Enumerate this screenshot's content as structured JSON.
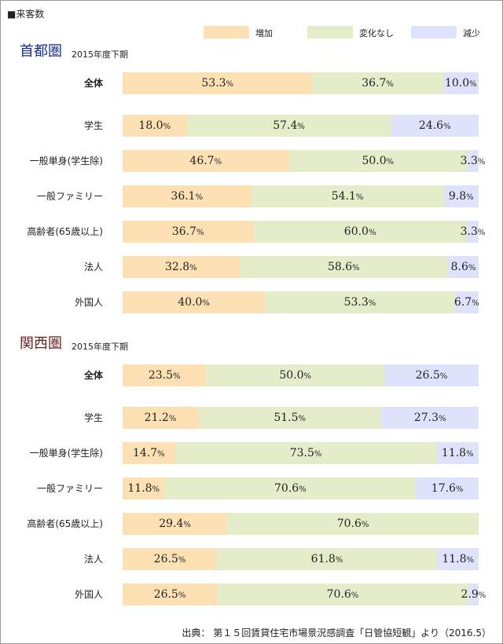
{
  "header": {
    "title": "■来客数"
  },
  "colors": {
    "increase": "#fde1b4",
    "unchanged": "#e5ecca",
    "decrease": "#dfe2fb",
    "region_capital": "#1c2e8c",
    "region_kansai": "#6b1f1f"
  },
  "source_text": "出典： 第１５回賃貸住宅市場景況感調査「日管協短観」より（2016.5）",
  "chart_data": {
    "type": "bar",
    "stacked": true,
    "orientation": "horizontal",
    "unit": "%",
    "xlim": [
      0,
      100
    ],
    "legend": {
      "placement": "top-right",
      "entries": [
        "増加",
        "変化なし",
        "減少"
      ]
    },
    "panels": [
      {
        "title": "首都圏",
        "subtitle": "2015年度下期",
        "categories": [
          "全体",
          "学生",
          "一般単身(学生除)",
          "一般ファミリー",
          "高齢者(65歳以上)",
          "法人",
          "外国人"
        ],
        "series": [
          {
            "name": "増加",
            "values": [
              53.3,
              18.0,
              46.7,
              36.1,
              36.7,
              32.8,
              40.0
            ]
          },
          {
            "name": "変化なし",
            "values": [
              36.7,
              57.4,
              50.0,
              54.1,
              60.0,
              58.6,
              53.3
            ]
          },
          {
            "name": "減少",
            "values": [
              10.0,
              24.6,
              3.3,
              9.8,
              3.3,
              8.6,
              6.7
            ]
          }
        ]
      },
      {
        "title": "関西圏",
        "subtitle": "2015年度下期",
        "categories": [
          "全体",
          "学生",
          "一般単身(学生除)",
          "一般ファミリー",
          "高齢者(65歳以上)",
          "法人",
          "外国人"
        ],
        "series": [
          {
            "name": "増加",
            "values": [
              23.5,
              21.2,
              14.7,
              11.8,
              29.4,
              26.5,
              26.5
            ]
          },
          {
            "name": "変化なし",
            "values": [
              50.0,
              51.5,
              73.5,
              70.6,
              70.6,
              61.8,
              70.6
            ]
          },
          {
            "name": "減少",
            "values": [
              26.5,
              27.3,
              11.8,
              17.6,
              0,
              11.8,
              2.9
            ]
          }
        ]
      }
    ]
  }
}
